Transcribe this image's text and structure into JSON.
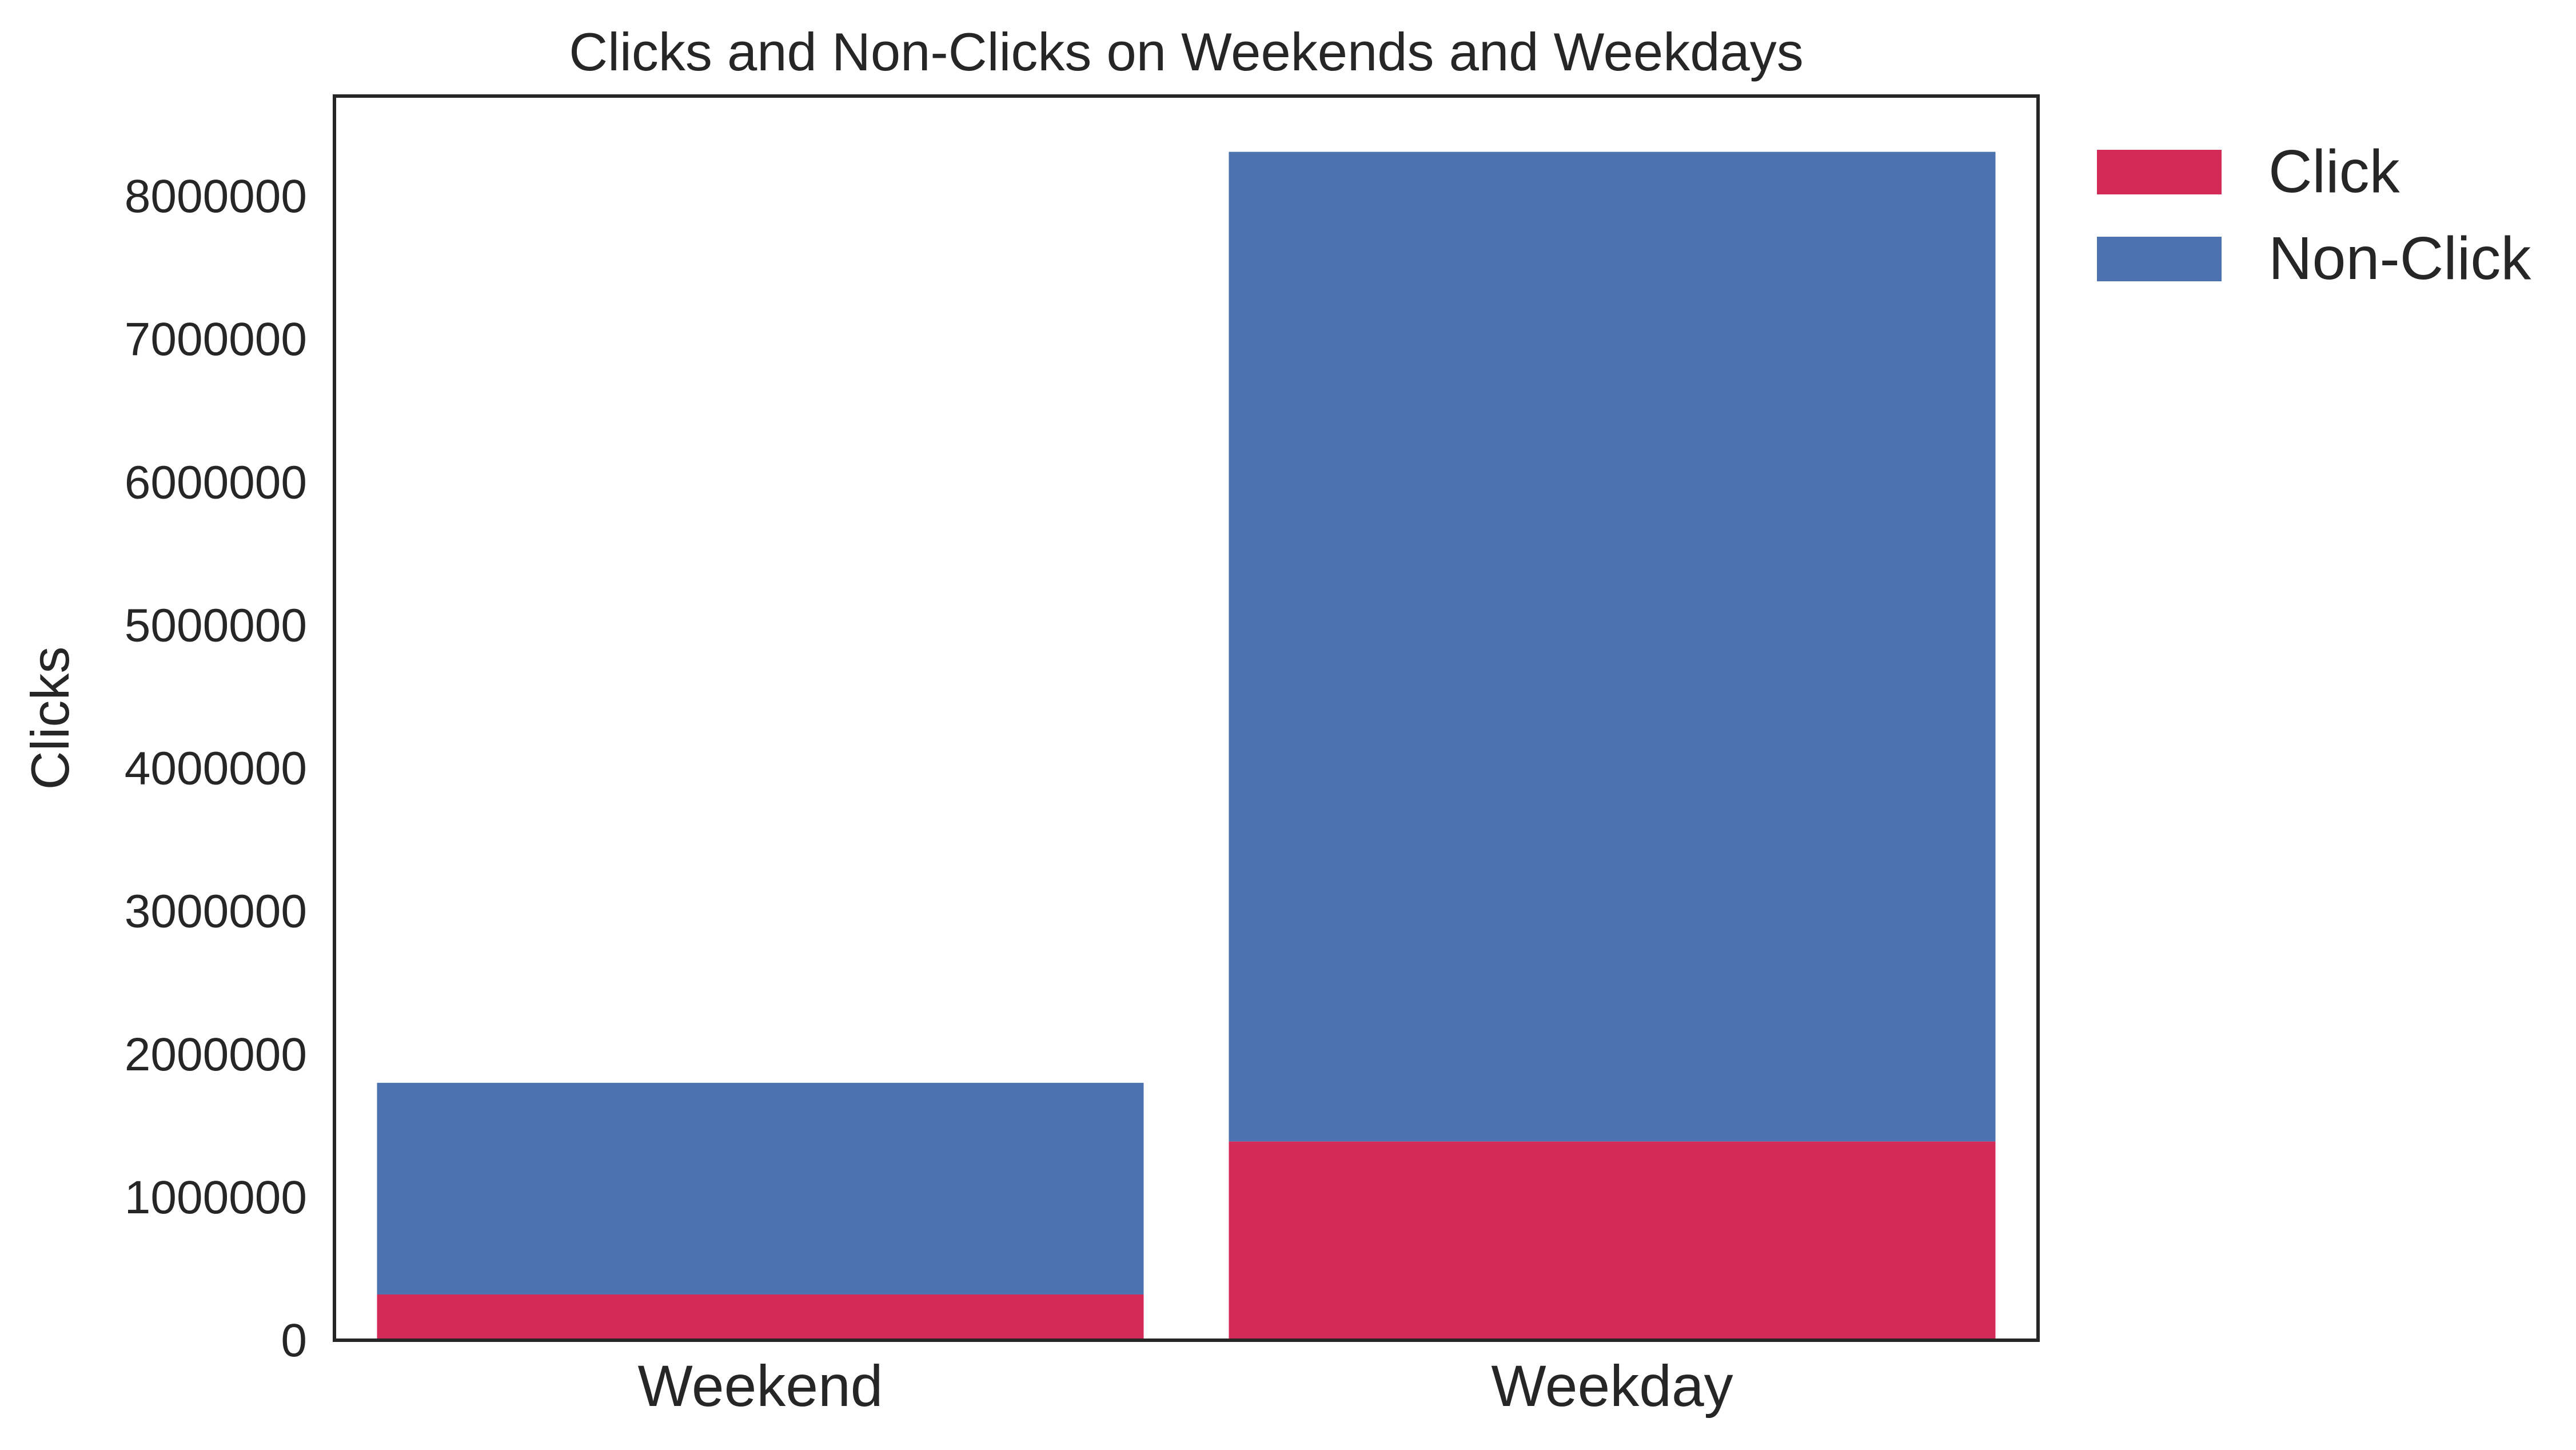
{
  "chart_data": {
    "type": "bar",
    "stacked": true,
    "title": "Clicks and Non-Clicks on Weekends and Weekdays",
    "xlabel": "",
    "ylabel": "Clicks",
    "categories": [
      "Weekend",
      "Weekday"
    ],
    "series": [
      {
        "name": "Click",
        "color": "#d42a58",
        "values": [
          320000,
          1390000
        ]
      },
      {
        "name": "Non-Click",
        "color": "#4c72b0",
        "values": [
          1480000,
          6920000
        ]
      }
    ],
    "ylim": [
      0,
      8700000
    ],
    "yticks": [
      0,
      1000000,
      2000000,
      3000000,
      4000000,
      5000000,
      6000000,
      7000000,
      8000000
    ],
    "ytick_labels": [
      "0",
      "1000000",
      "2000000",
      "3000000",
      "4000000",
      "5000000",
      "6000000",
      "7000000",
      "8000000"
    ],
    "grid": false,
    "legend": "outside-top-right"
  }
}
